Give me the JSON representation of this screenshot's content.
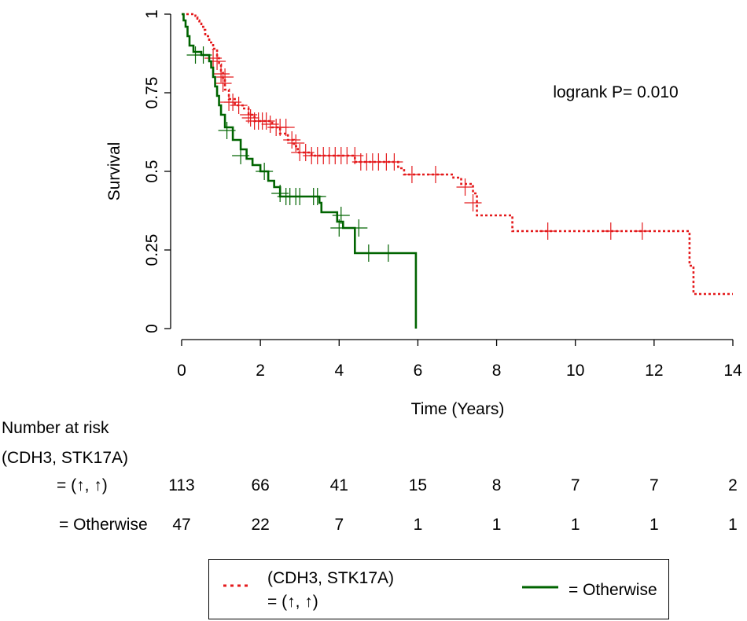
{
  "chart_data": {
    "type": "line",
    "subtype": "kaplan-meier",
    "title": "",
    "xlabel": "Time (Years)",
    "ylabel": "Survival",
    "xlim": [
      0,
      14
    ],
    "ylim": [
      0,
      1
    ],
    "xticks": [
      0,
      2,
      4,
      6,
      8,
      10,
      12,
      14
    ],
    "yticks": [
      0,
      0.25,
      0.5,
      0.75,
      1
    ],
    "ytick_labels": [
      "0",
      "0.25",
      "0.5",
      "0.75",
      "1"
    ],
    "annotation": "logrank P= 0.010",
    "series": [
      {
        "name": "(CDH3, STK17A) = (↑, ↑)",
        "color": "#e41a1c",
        "linestyle": "dotted",
        "steps": [
          [
            0,
            1
          ],
          [
            0.3,
            1
          ],
          [
            0.35,
            0.99
          ],
          [
            0.4,
            0.98
          ],
          [
            0.45,
            0.97
          ],
          [
            0.5,
            0.96
          ],
          [
            0.55,
            0.95
          ],
          [
            0.6,
            0.93
          ],
          [
            0.7,
            0.91
          ],
          [
            0.8,
            0.89
          ],
          [
            0.9,
            0.86
          ],
          [
            0.95,
            0.84
          ],
          [
            1.0,
            0.82
          ],
          [
            1.05,
            0.79
          ],
          [
            1.1,
            0.76
          ],
          [
            1.2,
            0.73
          ],
          [
            1.35,
            0.71
          ],
          [
            1.55,
            0.7
          ],
          [
            1.7,
            0.68
          ],
          [
            1.85,
            0.66
          ],
          [
            2.3,
            0.64
          ],
          [
            2.5,
            0.62
          ],
          [
            2.7,
            0.6
          ],
          [
            2.85,
            0.58
          ],
          [
            2.95,
            0.56
          ],
          [
            3.3,
            0.55
          ],
          [
            4.4,
            0.53
          ],
          [
            5.5,
            0.51
          ],
          [
            5.65,
            0.49
          ],
          [
            6.9,
            0.48
          ],
          [
            7.1,
            0.46
          ],
          [
            7.4,
            0.43
          ],
          [
            7.5,
            0.36
          ],
          [
            8.4,
            0.31
          ],
          [
            12.8,
            0.31
          ],
          [
            12.9,
            0.2
          ],
          [
            13.0,
            0.11
          ],
          [
            14.0,
            0.11
          ]
        ],
        "censor": [
          [
            0.8,
            0.86
          ],
          [
            0.9,
            0.85
          ],
          [
            1.0,
            0.81
          ],
          [
            1.05,
            0.78
          ],
          [
            1.1,
            0.8
          ],
          [
            1.2,
            0.72
          ],
          [
            1.3,
            0.72
          ],
          [
            1.45,
            0.71
          ],
          [
            1.7,
            0.68
          ],
          [
            1.75,
            0.67
          ],
          [
            1.85,
            0.66
          ],
          [
            1.95,
            0.66
          ],
          [
            2.05,
            0.66
          ],
          [
            2.15,
            0.66
          ],
          [
            2.25,
            0.65
          ],
          [
            2.4,
            0.64
          ],
          [
            2.5,
            0.64
          ],
          [
            2.65,
            0.64
          ],
          [
            2.8,
            0.6
          ],
          [
            2.9,
            0.59
          ],
          [
            3.0,
            0.56
          ],
          [
            3.15,
            0.56
          ],
          [
            3.3,
            0.55
          ],
          [
            3.45,
            0.55
          ],
          [
            3.6,
            0.55
          ],
          [
            3.75,
            0.55
          ],
          [
            3.9,
            0.55
          ],
          [
            4.05,
            0.55
          ],
          [
            4.2,
            0.55
          ],
          [
            4.4,
            0.55
          ],
          [
            4.55,
            0.53
          ],
          [
            4.7,
            0.53
          ],
          [
            4.85,
            0.53
          ],
          [
            5.0,
            0.53
          ],
          [
            5.2,
            0.53
          ],
          [
            5.4,
            0.53
          ],
          [
            5.85,
            0.49
          ],
          [
            6.45,
            0.49
          ],
          [
            7.2,
            0.45
          ],
          [
            7.4,
            0.4
          ],
          [
            9.3,
            0.31
          ],
          [
            10.9,
            0.31
          ],
          [
            11.7,
            0.31
          ]
        ]
      },
      {
        "name": "Otherwise",
        "color": "#006400",
        "linestyle": "solid",
        "steps": [
          [
            0,
            1
          ],
          [
            0.05,
            0.98
          ],
          [
            0.1,
            0.96
          ],
          [
            0.15,
            0.93
          ],
          [
            0.2,
            0.9
          ],
          [
            0.3,
            0.88
          ],
          [
            0.5,
            0.87
          ],
          [
            0.7,
            0.85
          ],
          [
            0.75,
            0.83
          ],
          [
            0.8,
            0.8
          ],
          [
            0.85,
            0.77
          ],
          [
            0.9,
            0.74
          ],
          [
            0.95,
            0.71
          ],
          [
            1.0,
            0.68
          ],
          [
            1.1,
            0.64
          ],
          [
            1.3,
            0.6
          ],
          [
            1.5,
            0.57
          ],
          [
            1.65,
            0.54
          ],
          [
            1.8,
            0.52
          ],
          [
            2.0,
            0.5
          ],
          [
            2.2,
            0.47
          ],
          [
            2.35,
            0.45
          ],
          [
            2.5,
            0.42
          ],
          [
            3.5,
            0.4
          ],
          [
            3.55,
            0.37
          ],
          [
            3.95,
            0.34
          ],
          [
            4.1,
            0.32
          ],
          [
            4.4,
            0.24
          ],
          [
            5.95,
            0.24
          ],
          [
            5.95,
            0
          ]
        ],
        "censor": [
          [
            0.35,
            0.87
          ],
          [
            0.55,
            0.87
          ],
          [
            1.15,
            0.63
          ],
          [
            1.5,
            0.55
          ],
          [
            2.1,
            0.5
          ],
          [
            2.5,
            0.43
          ],
          [
            2.65,
            0.42
          ],
          [
            2.75,
            0.42
          ],
          [
            2.9,
            0.42
          ],
          [
            3.0,
            0.42
          ],
          [
            3.35,
            0.42
          ],
          [
            3.45,
            0.42
          ],
          [
            4.05,
            0.36
          ],
          [
            4.0,
            0.32
          ],
          [
            4.5,
            0.32
          ],
          [
            4.75,
            0.24
          ],
          [
            5.25,
            0.24
          ]
        ]
      }
    ],
    "risk_table": {
      "title_line1": "Number at risk",
      "title_line2": " (CDH3, STK17A)",
      "times": [
        0,
        2,
        4,
        6,
        8,
        10,
        12,
        14
      ],
      "rows": [
        {
          "label": "= (↑, ↑)",
          "values": [
            113,
            66,
            41,
            15,
            8,
            7,
            7,
            2
          ]
        },
        {
          "label": "= Otherwise",
          "values": [
            47,
            22,
            7,
            1,
            1,
            1,
            1,
            1
          ]
        }
      ]
    },
    "legend": {
      "position": "bottom",
      "entries": [
        {
          "label_line1": "(CDH3, STK17A)",
          "label_line2": "= (↑, ↑)"
        },
        {
          "label_line1": "= Otherwise"
        }
      ]
    }
  }
}
